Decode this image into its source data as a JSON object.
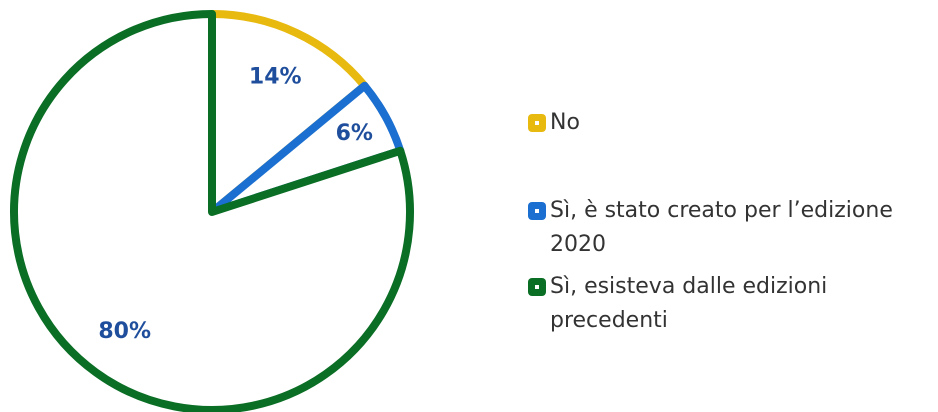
{
  "chart_data": {
    "type": "pie",
    "categories": [
      "No",
      "Sì, è stato creato per l’edizione 2020",
      "Sì, esisteva dalle edizioni precedenti"
    ],
    "values": [
      14,
      6,
      80
    ],
    "value_labels": [
      "14%",
      "6%",
      "80%"
    ],
    "colors": [
      "#e8b90f",
      "#1a6fd0",
      "#0a6e25"
    ]
  }
}
